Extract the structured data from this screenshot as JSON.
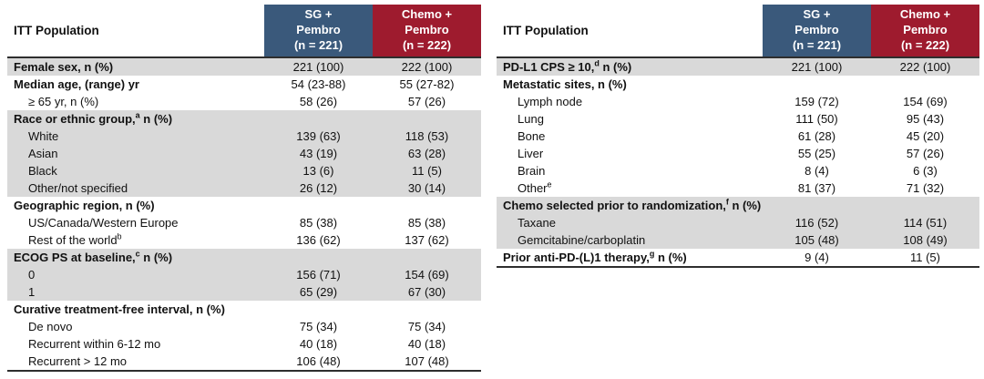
{
  "colors": {
    "header_blue": "#3a597b",
    "header_red": "#9e1b2e",
    "row_shade": "#d9d9d9",
    "rule": "#2e2e2e",
    "background": "#ffffff"
  },
  "tables": [
    {
      "title": "ITT Population",
      "columns": [
        {
          "label": "SG +\nPembro\n(n = 221)",
          "color": "#3a597b"
        },
        {
          "label": "Chemo +\nPembro\n(n = 222)",
          "color": "#9e1b2e"
        }
      ],
      "rows": [
        {
          "pre": "Female sex, n (%)",
          "sup": "",
          "post": "",
          "bold": true,
          "indent": false,
          "shaded": true,
          "values": [
            "221 (100)",
            "222 (100)"
          ]
        },
        {
          "pre": "Median age, (range) yr",
          "sup": "",
          "post": "",
          "bold": true,
          "indent": false,
          "shaded": false,
          "values": [
            "54 (23-88)",
            "55 (27-82)"
          ]
        },
        {
          "pre": "≥ 65 yr, n (%)",
          "sup": "",
          "post": "",
          "bold": false,
          "indent": true,
          "shaded": false,
          "values": [
            "58 (26)",
            "57 (26)"
          ]
        },
        {
          "pre": "Race or ethnic group,",
          "sup": "a",
          "post": " n (%)",
          "bold": true,
          "indent": false,
          "shaded": true,
          "values": [
            "",
            ""
          ]
        },
        {
          "pre": "White",
          "sup": "",
          "post": "",
          "bold": false,
          "indent": true,
          "shaded": true,
          "values": [
            "139 (63)",
            "118 (53)"
          ]
        },
        {
          "pre": "Asian",
          "sup": "",
          "post": "",
          "bold": false,
          "indent": true,
          "shaded": true,
          "values": [
            "43 (19)",
            "63 (28)"
          ]
        },
        {
          "pre": "Black",
          "sup": "",
          "post": "",
          "bold": false,
          "indent": true,
          "shaded": true,
          "values": [
            "13 (6)",
            "11 (5)"
          ]
        },
        {
          "pre": "Other/not specified",
          "sup": "",
          "post": "",
          "bold": false,
          "indent": true,
          "shaded": true,
          "values": [
            "26 (12)",
            "30 (14)"
          ]
        },
        {
          "pre": "Geographic region, n (%)",
          "sup": "",
          "post": "",
          "bold": true,
          "indent": false,
          "shaded": false,
          "values": [
            "",
            ""
          ]
        },
        {
          "pre": "US/Canada/Western Europe",
          "sup": "",
          "post": "",
          "bold": false,
          "indent": true,
          "shaded": false,
          "values": [
            "85 (38)",
            "85 (38)"
          ]
        },
        {
          "pre": "Rest of the world",
          "sup": "b",
          "post": "",
          "bold": false,
          "indent": true,
          "shaded": false,
          "values": [
            "136 (62)",
            "137 (62)"
          ]
        },
        {
          "pre": "ECOG PS at baseline,",
          "sup": "c",
          "post": " n (%)",
          "bold": true,
          "indent": false,
          "shaded": true,
          "values": [
            "",
            ""
          ]
        },
        {
          "pre": "0",
          "sup": "",
          "post": "",
          "bold": false,
          "indent": true,
          "shaded": true,
          "values": [
            "156 (71)",
            "154 (69)"
          ]
        },
        {
          "pre": "1",
          "sup": "",
          "post": "",
          "bold": false,
          "indent": true,
          "shaded": true,
          "values": [
            "65 (29)",
            "67 (30)"
          ]
        },
        {
          "pre": "Curative treatment-free interval, n (%)",
          "sup": "",
          "post": "",
          "bold": true,
          "indent": false,
          "shaded": false,
          "values": [
            "",
            ""
          ]
        },
        {
          "pre": "De novo",
          "sup": "",
          "post": "",
          "bold": false,
          "indent": true,
          "shaded": false,
          "values": [
            "75 (34)",
            "75 (34)"
          ]
        },
        {
          "pre": "Recurrent within 6-12 mo",
          "sup": "",
          "post": "",
          "bold": false,
          "indent": true,
          "shaded": false,
          "values": [
            "40 (18)",
            "40 (18)"
          ]
        },
        {
          "pre": "Recurrent > 12 mo",
          "sup": "",
          "post": "",
          "bold": false,
          "indent": true,
          "shaded": false,
          "values": [
            "106 (48)",
            "107 (48)"
          ]
        }
      ]
    },
    {
      "title": "ITT Population",
      "columns": [
        {
          "label": "SG +\nPembro\n(n = 221)",
          "color": "#3a597b"
        },
        {
          "label": "Chemo +\nPembro\n(n = 222)",
          "color": "#9e1b2e"
        }
      ],
      "rows": [
        {
          "pre": "PD-L1 CPS ≥ 10,",
          "sup": "d",
          "post": " n (%)",
          "bold": true,
          "indent": false,
          "shaded": true,
          "values": [
            "221 (100)",
            "222 (100)"
          ]
        },
        {
          "pre": "Metastatic sites, n (%)",
          "sup": "",
          "post": "",
          "bold": true,
          "indent": false,
          "shaded": false,
          "values": [
            "",
            ""
          ]
        },
        {
          "pre": "Lymph node",
          "sup": "",
          "post": "",
          "bold": false,
          "indent": true,
          "shaded": false,
          "values": [
            "159 (72)",
            "154 (69)"
          ]
        },
        {
          "pre": "Lung",
          "sup": "",
          "post": "",
          "bold": false,
          "indent": true,
          "shaded": false,
          "values": [
            "111 (50)",
            "95 (43)"
          ]
        },
        {
          "pre": "Bone",
          "sup": "",
          "post": "",
          "bold": false,
          "indent": true,
          "shaded": false,
          "values": [
            "61 (28)",
            "45 (20)"
          ]
        },
        {
          "pre": "Liver",
          "sup": "",
          "post": "",
          "bold": false,
          "indent": true,
          "shaded": false,
          "values": [
            "55 (25)",
            "57 (26)"
          ]
        },
        {
          "pre": "Brain",
          "sup": "",
          "post": "",
          "bold": false,
          "indent": true,
          "shaded": false,
          "values": [
            "8 (4)",
            "6 (3)"
          ]
        },
        {
          "pre": "Other",
          "sup": "e",
          "post": "",
          "bold": false,
          "indent": true,
          "shaded": false,
          "values": [
            "81 (37)",
            "71 (32)"
          ]
        },
        {
          "pre": "Chemo selected prior to randomization,",
          "sup": "f",
          "post": " n (%)",
          "bold": true,
          "indent": false,
          "shaded": true,
          "values": [
            "",
            ""
          ]
        },
        {
          "pre": "Taxane",
          "sup": "",
          "post": "",
          "bold": false,
          "indent": true,
          "shaded": true,
          "values": [
            "116 (52)",
            "114 (51)"
          ]
        },
        {
          "pre": "Gemcitabine/carboplatin",
          "sup": "",
          "post": "",
          "bold": false,
          "indent": true,
          "shaded": true,
          "values": [
            "105 (48)",
            "108 (49)"
          ]
        },
        {
          "pre": "Prior anti-PD-(L)1 therapy,",
          "sup": "g",
          "post": " n (%)",
          "bold": true,
          "indent": false,
          "shaded": false,
          "values": [
            "9 (4)",
            "11 (5)"
          ]
        }
      ]
    }
  ]
}
